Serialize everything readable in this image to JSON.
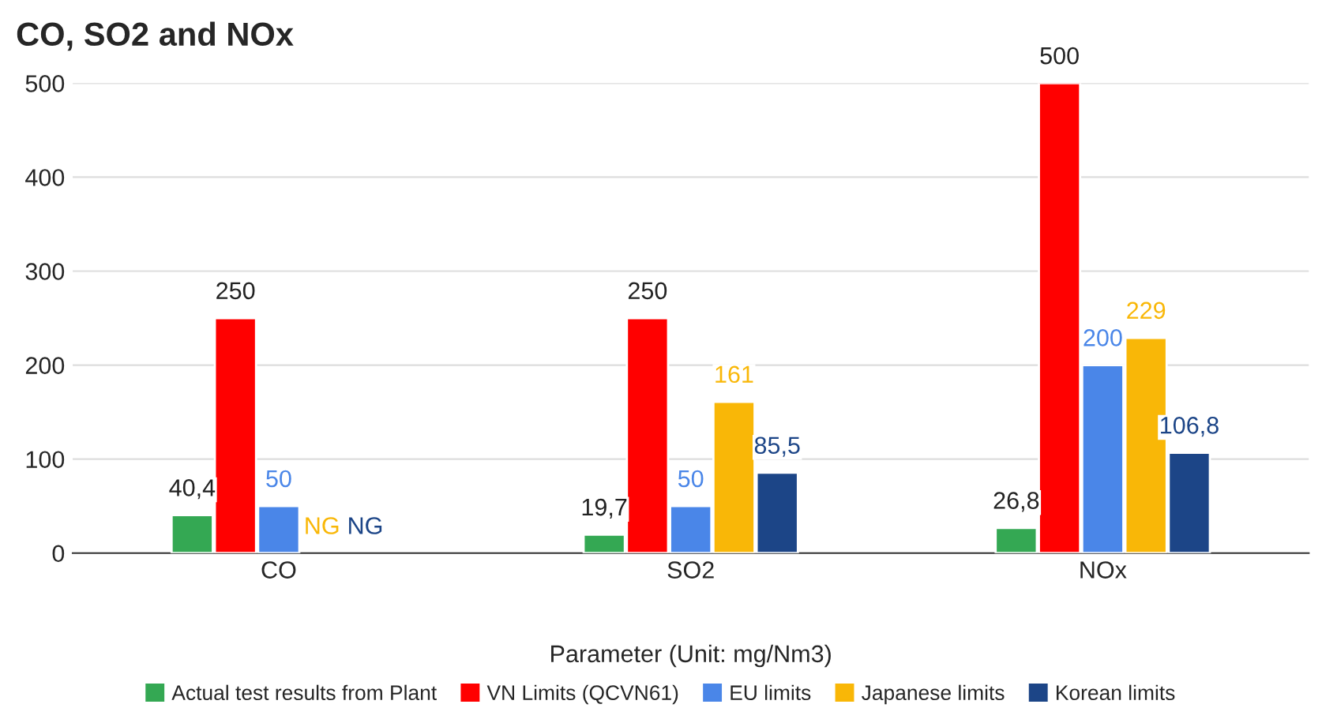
{
  "chart_data": {
    "type": "bar",
    "title": "CO, SO2 and NOx",
    "xlabel": "Parameter (Unit: mg/Nm3)",
    "categories": [
      "CO",
      "SO2",
      "NOx"
    ],
    "series": [
      {
        "name": "Actual test results from Plant",
        "color": "#34a853",
        "values": [
          40.4,
          19.7,
          26.8
        ],
        "value_labels": [
          "40,4",
          "19,7",
          "26,8"
        ]
      },
      {
        "name": "VN Limits (QCVN61)",
        "color": "#ff0000",
        "values": [
          250,
          250,
          500
        ],
        "value_labels": [
          "250",
          "250",
          "500"
        ]
      },
      {
        "name": "EU limits",
        "color": "#4a86e8",
        "values": [
          50,
          50,
          200
        ],
        "value_labels": [
          "50",
          "50",
          "200"
        ]
      },
      {
        "name": "Japanese limits",
        "color": "#f9b707",
        "values": [
          null,
          161,
          229
        ],
        "value_labels": [
          "NG",
          "161",
          "229"
        ]
      },
      {
        "name": "Korean limits",
        "color": "#1c4587",
        "values": [
          null,
          85.5,
          106.8
        ],
        "value_labels": [
          "NG",
          "85,5",
          "106,8"
        ]
      }
    ],
    "ylim": [
      0,
      500
    ],
    "yticks": [
      0,
      100,
      200,
      300,
      400,
      500
    ],
    "grid": "y",
    "legend": "bottom"
  }
}
